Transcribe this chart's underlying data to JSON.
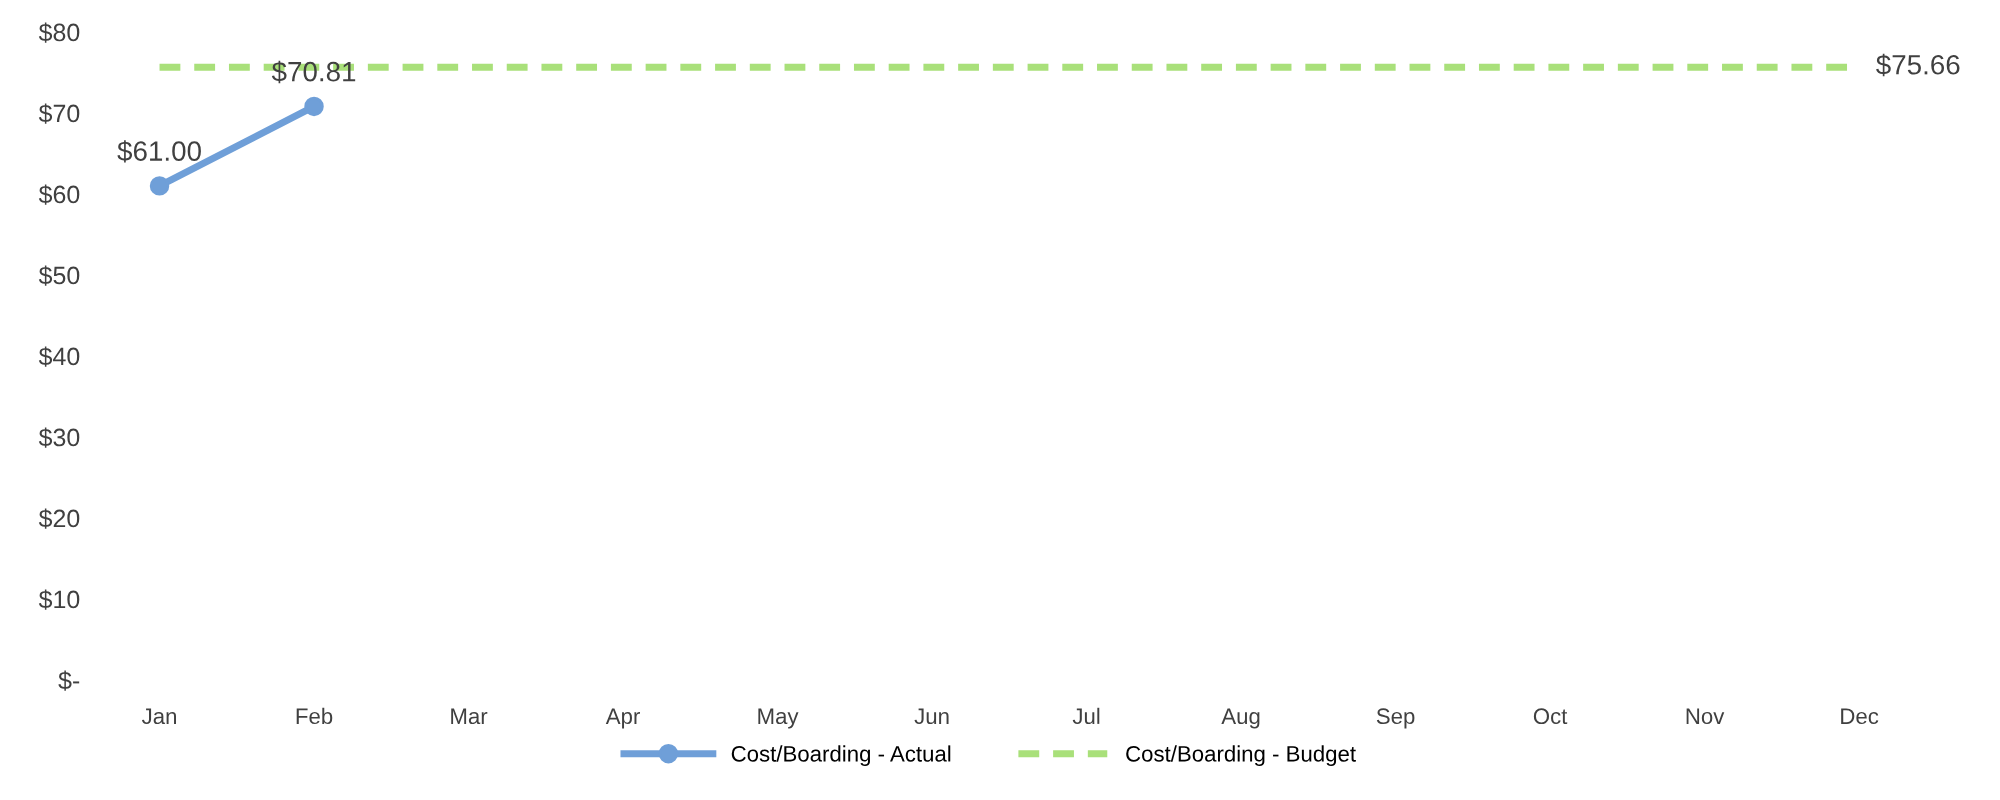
{
  "chart_data": {
    "type": "line",
    "categories": [
      "Jan",
      "Feb",
      "Mar",
      "Apr",
      "May",
      "Jun",
      "Jul",
      "Aug",
      "Sep",
      "Oct",
      "Nov",
      "Dec"
    ],
    "series": [
      {
        "name": "Cost/Boarding - Actual",
        "color": "#6f9fd8",
        "marker": "circle",
        "line_style": "solid",
        "values": [
          61.0,
          70.81,
          null,
          null,
          null,
          null,
          null,
          null,
          null,
          null,
          null,
          null
        ],
        "value_labels": [
          "$61.00",
          "$70.81",
          null,
          null,
          null,
          null,
          null,
          null,
          null,
          null,
          null,
          null
        ]
      },
      {
        "name": "Cost/Boarding - Budget",
        "color": "#a9e07a",
        "marker": "none",
        "line_style": "dashed",
        "values": [
          75.66,
          75.66,
          75.66,
          75.66,
          75.66,
          75.66,
          75.66,
          75.66,
          75.66,
          75.66,
          75.66,
          75.66
        ],
        "value_labels": [
          null,
          null,
          null,
          null,
          null,
          null,
          null,
          null,
          null,
          null,
          null,
          "$75.66"
        ]
      }
    ],
    "ylim": [
      0,
      80
    ],
    "yticks": [
      {
        "value": 0,
        "label": "$-"
      },
      {
        "value": 10,
        "label": "$10"
      },
      {
        "value": 20,
        "label": "$20"
      },
      {
        "value": 30,
        "label": "$30"
      },
      {
        "value": 40,
        "label": "$40"
      },
      {
        "value": 50,
        "label": "$50"
      },
      {
        "value": 60,
        "label": "$60"
      },
      {
        "value": 70,
        "label": "$70"
      },
      {
        "value": 80,
        "label": "$80"
      }
    ],
    "grid": false,
    "legend": "bottom"
  }
}
